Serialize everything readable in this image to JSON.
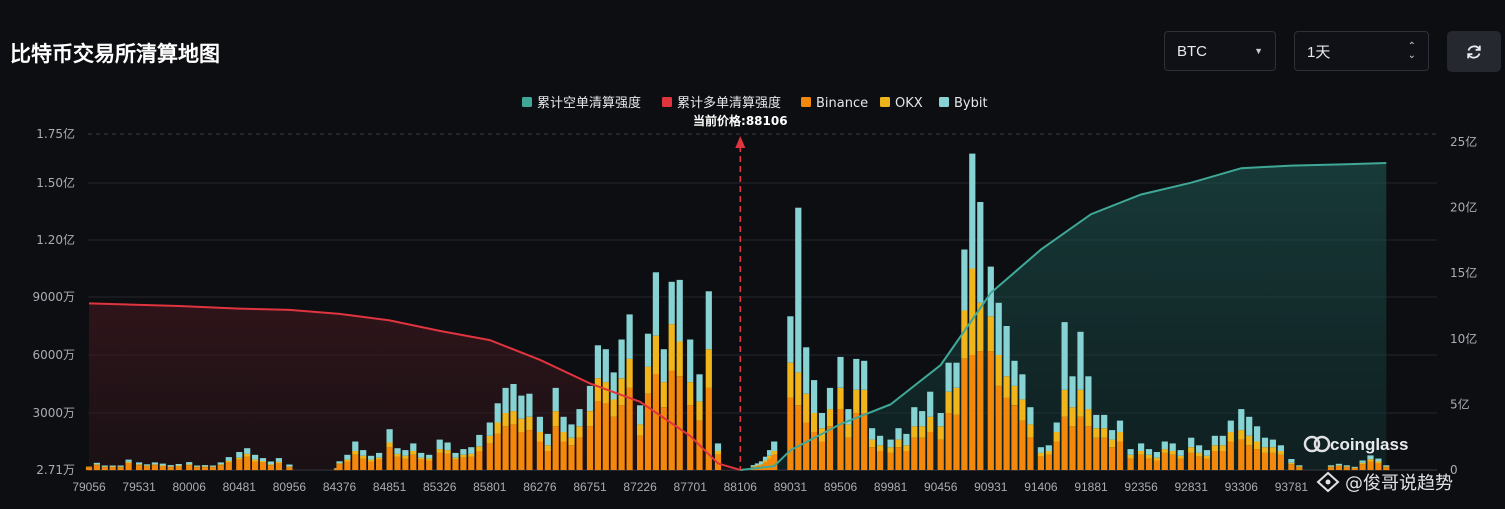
{
  "header": {
    "title": "比特币交易所清算地图",
    "coin_select": "BTC",
    "range_select": "1天",
    "refresh_icon": "refresh-icon"
  },
  "watermark": {
    "brand": "coinglass",
    "author": "@俊哥说趋势"
  },
  "colors": {
    "short_cum": "#3fa896",
    "long_cum": "#e0343f",
    "binance": "#f4880c",
    "okx": "#f0b51a",
    "bybit": "#87d3d3"
  },
  "chart_data": {
    "type": "bar",
    "title": "",
    "current_price_label": "当前价格:88106",
    "current_price": 88106,
    "legend": [
      "累计空单清算强度",
      "累计多单清算强度",
      "Binance",
      "OKX",
      "Bybit"
    ],
    "legend_placement": "top-center",
    "x_ticks": [
      "79056",
      "79531",
      "80006",
      "80481",
      "80956",
      "84376",
      "84851",
      "85326",
      "85801",
      "86276",
      "86751",
      "87226",
      "87701",
      "88106",
      "89031",
      "89506",
      "89981",
      "90456",
      "90931",
      "91406",
      "91881",
      "92356",
      "92831",
      "93306",
      "93781"
    ],
    "y_left_ticks": [
      "2.71万",
      "3000万",
      "6000万",
      "9000万",
      "1.20亿",
      "1.50亿",
      "1.75亿"
    ],
    "y_left_values": [
      27100,
      30000000,
      60000000,
      90000000,
      120000000,
      150000000,
      175000000
    ],
    "y_right_ticks": [
      "0",
      "5亿",
      "10亿",
      "15亿",
      "20亿",
      "25亿"
    ],
    "y_right_values": [
      0,
      500000000,
      1000000000,
      1500000000,
      2000000000,
      2500000000
    ],
    "grid": true,
    "unit_left": "USD",
    "bars_note": "stacked per price level, values in 万 USD (Binance, OKX, Bybit)",
    "bars": [
      {
        "x": 79056,
        "binance": 150,
        "okx": 30,
        "bybit": 0
      },
      {
        "x": 79131,
        "binance": 250,
        "okx": 50,
        "bybit": 80
      },
      {
        "x": 79206,
        "binance": 150,
        "okx": 30,
        "bybit": 60
      },
      {
        "x": 79281,
        "binance": 150,
        "okx": 40,
        "bybit": 50
      },
      {
        "x": 79356,
        "binance": 150,
        "okx": 30,
        "bybit": 60
      },
      {
        "x": 79431,
        "binance": 350,
        "okx": 80,
        "bybit": 120
      },
      {
        "x": 79531,
        "binance": 250,
        "okx": 50,
        "bybit": 100
      },
      {
        "x": 79606,
        "binance": 200,
        "okx": 40,
        "bybit": 60
      },
      {
        "x": 79681,
        "binance": 250,
        "okx": 50,
        "bybit": 100
      },
      {
        "x": 79756,
        "binance": 200,
        "okx": 40,
        "bybit": 100
      },
      {
        "x": 79831,
        "binance": 150,
        "okx": 40,
        "bybit": 70
      },
      {
        "x": 79906,
        "binance": 200,
        "okx": 40,
        "bybit": 80
      },
      {
        "x": 80006,
        "binance": 250,
        "okx": 50,
        "bybit": 120
      },
      {
        "x": 80081,
        "binance": 150,
        "okx": 30,
        "bybit": 60
      },
      {
        "x": 80156,
        "binance": 150,
        "okx": 40,
        "bybit": 70
      },
      {
        "x": 80231,
        "binance": 150,
        "okx": 30,
        "bybit": 60
      },
      {
        "x": 80306,
        "binance": 250,
        "okx": 50,
        "bybit": 100
      },
      {
        "x": 80381,
        "binance": 400,
        "okx": 80,
        "bybit": 200
      },
      {
        "x": 80481,
        "binance": 550,
        "okx": 100,
        "bybit": 300
      },
      {
        "x": 80556,
        "binance": 700,
        "okx": 150,
        "bybit": 300
      },
      {
        "x": 80631,
        "binance": 450,
        "okx": 100,
        "bybit": 250
      },
      {
        "x": 80706,
        "binance": 400,
        "okx": 80,
        "bybit": 150
      },
      {
        "x": 80781,
        "binance": 250,
        "okx": 50,
        "bybit": 150
      },
      {
        "x": 80856,
        "binance": 350,
        "okx": 80,
        "bybit": 200
      },
      {
        "x": 80956,
        "binance": 150,
        "okx": 40,
        "bybit": 100
      },
      {
        "x": 84201,
        "binance": 50,
        "okx": 10,
        "bybit": 30
      },
      {
        "x": 84276,
        "binance": 50,
        "okx": 10,
        "bybit": 30
      },
      {
        "x": 84376,
        "binance": 300,
        "okx": 60,
        "bybit": 100
      },
      {
        "x": 84451,
        "binance": 450,
        "okx": 100,
        "bybit": 250
      },
      {
        "x": 84526,
        "binance": 800,
        "okx": 200,
        "bybit": 500
      },
      {
        "x": 84601,
        "binance": 600,
        "okx": 150,
        "bybit": 300
      },
      {
        "x": 84676,
        "binance": 450,
        "okx": 100,
        "bybit": 200
      },
      {
        "x": 84751,
        "binance": 550,
        "okx": 100,
        "bybit": 250
      },
      {
        "x": 84851,
        "binance": 1200,
        "okx": 250,
        "bybit": 700
      },
      {
        "x": 84926,
        "binance": 700,
        "okx": 150,
        "bybit": 300
      },
      {
        "x": 85001,
        "binance": 600,
        "okx": 150,
        "bybit": 300
      },
      {
        "x": 85076,
        "binance": 800,
        "okx": 200,
        "bybit": 400
      },
      {
        "x": 85151,
        "binance": 550,
        "okx": 100,
        "bybit": 250
      },
      {
        "x": 85226,
        "binance": 500,
        "okx": 100,
        "bybit": 200
      },
      {
        "x": 85326,
        "binance": 900,
        "okx": 200,
        "bybit": 500
      },
      {
        "x": 85401,
        "binance": 850,
        "okx": 200,
        "bybit": 400
      },
      {
        "x": 85476,
        "binance": 550,
        "okx": 100,
        "bybit": 250
      },
      {
        "x": 85551,
        "binance": 650,
        "okx": 150,
        "bybit": 300
      },
      {
        "x": 85626,
        "binance": 700,
        "okx": 150,
        "bybit": 350
      },
      {
        "x": 85701,
        "binance": 1000,
        "okx": 250,
        "bybit": 600
      },
      {
        "x": 85801,
        "binance": 1400,
        "okx": 400,
        "bybit": 700
      },
      {
        "x": 85876,
        "binance": 1900,
        "okx": 600,
        "bybit": 1000
      },
      {
        "x": 85951,
        "binance": 2300,
        "okx": 700,
        "bybit": 1300
      },
      {
        "x": 86026,
        "binance": 2400,
        "okx": 700,
        "bybit": 1400
      },
      {
        "x": 86101,
        "binance": 2000,
        "okx": 700,
        "bybit": 1200
      },
      {
        "x": 86176,
        "binance": 2100,
        "okx": 700,
        "bybit": 1200
      },
      {
        "x": 86276,
        "binance": 1500,
        "okx": 500,
        "bybit": 800
      },
      {
        "x": 86351,
        "binance": 1000,
        "okx": 300,
        "bybit": 600
      },
      {
        "x": 86426,
        "binance": 2300,
        "okx": 800,
        "bybit": 1200
      },
      {
        "x": 86501,
        "binance": 1500,
        "okx": 500,
        "bybit": 800
      },
      {
        "x": 86576,
        "binance": 1300,
        "okx": 400,
        "bybit": 700
      },
      {
        "x": 86651,
        "binance": 1700,
        "okx": 600,
        "bybit": 900
      },
      {
        "x": 86751,
        "binance": 2300,
        "okx": 800,
        "bybit": 1300
      },
      {
        "x": 86826,
        "binance": 3600,
        "okx": 1200,
        "bybit": 1700
      },
      {
        "x": 86901,
        "binance": 3500,
        "okx": 1100,
        "bybit": 1700
      },
      {
        "x": 86976,
        "binance": 2800,
        "okx": 900,
        "bybit": 1400
      },
      {
        "x": 87051,
        "binance": 3400,
        "okx": 1400,
        "bybit": 2000
      },
      {
        "x": 87126,
        "binance": 4300,
        "okx": 1500,
        "bybit": 2300
      },
      {
        "x": 87226,
        "binance": 1800,
        "okx": 600,
        "bybit": 1000
      },
      {
        "x": 87301,
        "binance": 4000,
        "okx": 1400,
        "bybit": 1700
      },
      {
        "x": 87376,
        "binance": 5000,
        "okx": 2000,
        "bybit": 3300
      },
      {
        "x": 87451,
        "binance": 3300,
        "okx": 1300,
        "bybit": 1700
      },
      {
        "x": 87526,
        "binance": 5200,
        "okx": 2400,
        "bybit": 2200
      },
      {
        "x": 87601,
        "binance": 4900,
        "okx": 1800,
        "bybit": 3200
      },
      {
        "x": 87701,
        "binance": 3400,
        "okx": 1200,
        "bybit": 2200
      },
      {
        "x": 87776,
        "binance": 2600,
        "okx": 1000,
        "bybit": 1400
      },
      {
        "x": 87851,
        "binance": 4300,
        "okx": 2000,
        "bybit": 3000
      },
      {
        "x": 87926,
        "binance": 800,
        "okx": 200,
        "bybit": 400
      },
      {
        "x": 88356,
        "binance": 150,
        "okx": 30,
        "bybit": 80
      },
      {
        "x": 88431,
        "binance": 200,
        "okx": 50,
        "bybit": 100
      },
      {
        "x": 88506,
        "binance": 250,
        "okx": 60,
        "bybit": 150
      },
      {
        "x": 88581,
        "binance": 400,
        "okx": 100,
        "bybit": 200
      },
      {
        "x": 88656,
        "binance": 600,
        "okx": 150,
        "bybit": 300
      },
      {
        "x": 88731,
        "binance": 800,
        "okx": 200,
        "bybit": 500
      },
      {
        "x": 89031,
        "binance": 3800,
        "okx": 1800,
        "bybit": 2400
      },
      {
        "x": 89106,
        "binance": 3400,
        "okx": 1700,
        "bybit": 8600
      },
      {
        "x": 89181,
        "binance": 2500,
        "okx": 1500,
        "bybit": 2400
      },
      {
        "x": 89256,
        "binance": 2000,
        "okx": 1000,
        "bybit": 1700
      },
      {
        "x": 89331,
        "binance": 1500,
        "okx": 700,
        "bybit": 800
      },
      {
        "x": 89406,
        "binance": 2300,
        "okx": 900,
        "bybit": 1100
      },
      {
        "x": 89506,
        "binance": 3200,
        "okx": 1100,
        "bybit": 1600
      },
      {
        "x": 89581,
        "binance": 1700,
        "okx": 700,
        "bybit": 800
      },
      {
        "x": 89656,
        "binance": 3000,
        "okx": 1200,
        "bybit": 1600
      },
      {
        "x": 89731,
        "binance": 3000,
        "okx": 1200,
        "bybit": 1500
      },
      {
        "x": 89806,
        "binance": 1200,
        "okx": 400,
        "bybit": 600
      },
      {
        "x": 89881,
        "binance": 1000,
        "okx": 300,
        "bybit": 500
      },
      {
        "x": 89981,
        "binance": 900,
        "okx": 300,
        "bybit": 400
      },
      {
        "x": 90056,
        "binance": 1200,
        "okx": 400,
        "bybit": 600
      },
      {
        "x": 90131,
        "binance": 1000,
        "okx": 300,
        "bybit": 600
      },
      {
        "x": 90206,
        "binance": 1700,
        "okx": 600,
        "bybit": 1000
      },
      {
        "x": 90281,
        "binance": 1700,
        "okx": 600,
        "bybit": 800
      },
      {
        "x": 90356,
        "binance": 2000,
        "okx": 800,
        "bybit": 1300
      },
      {
        "x": 90456,
        "binance": 1600,
        "okx": 700,
        "bybit": 700
      },
      {
        "x": 90531,
        "binance": 3000,
        "okx": 1100,
        "bybit": 1500
      },
      {
        "x": 90606,
        "binance": 2900,
        "okx": 1400,
        "bybit": 1300
      },
      {
        "x": 90681,
        "binance": 5800,
        "okx": 2500,
        "bybit": 3200
      },
      {
        "x": 90756,
        "binance": 6000,
        "okx": 4500,
        "bybit": 6000
      },
      {
        "x": 90831,
        "binance": 6200,
        "okx": 2500,
        "bybit": 5300
      },
      {
        "x": 90931,
        "binance": 6200,
        "okx": 1800,
        "bybit": 2600
      },
      {
        "x": 91006,
        "binance": 4400,
        "okx": 1600,
        "bybit": 2700
      },
      {
        "x": 91081,
        "binance": 3800,
        "okx": 1100,
        "bybit": 2600
      },
      {
        "x": 91156,
        "binance": 3400,
        "okx": 1000,
        "bybit": 1300
      },
      {
        "x": 91231,
        "binance": 2600,
        "okx": 1100,
        "bybit": 1300
      },
      {
        "x": 91306,
        "binance": 1700,
        "okx": 700,
        "bybit": 900
      },
      {
        "x": 91406,
        "binance": 700,
        "okx": 200,
        "bybit": 300
      },
      {
        "x": 91481,
        "binance": 800,
        "okx": 200,
        "bybit": 300
      },
      {
        "x": 91556,
        "binance": 1500,
        "okx": 500,
        "bybit": 500
      },
      {
        "x": 91631,
        "binance": 2800,
        "okx": 1400,
        "bybit": 3500
      },
      {
        "x": 91706,
        "binance": 2300,
        "okx": 1000,
        "bybit": 1600
      },
      {
        "x": 91781,
        "binance": 2800,
        "okx": 1400,
        "bybit": 3000
      },
      {
        "x": 91856,
        "binance": 2300,
        "okx": 900,
        "bybit": 1700
      },
      {
        "x": 91931,
        "binance": 1700,
        "okx": 500,
        "bybit": 700
      },
      {
        "x": 92006,
        "binance": 1700,
        "okx": 500,
        "bybit": 700
      },
      {
        "x": 92081,
        "binance": 1200,
        "okx": 400,
        "bybit": 500
      },
      {
        "x": 92156,
        "binance": 1500,
        "okx": 500,
        "bybit": 600
      },
      {
        "x": 92256,
        "binance": 600,
        "okx": 200,
        "bybit": 300
      },
      {
        "x": 92356,
        "binance": 800,
        "okx": 200,
        "bybit": 400
      },
      {
        "x": 92431,
        "binance": 600,
        "okx": 200,
        "bybit": 300
      },
      {
        "x": 92506,
        "binance": 500,
        "okx": 150,
        "bybit": 300
      },
      {
        "x": 92581,
        "binance": 900,
        "okx": 200,
        "bybit": 400
      },
      {
        "x": 92656,
        "binance": 800,
        "okx": 200,
        "bybit": 400
      },
      {
        "x": 92731,
        "binance": 600,
        "okx": 150,
        "bybit": 300
      },
      {
        "x": 92831,
        "binance": 900,
        "okx": 300,
        "bybit": 500
      },
      {
        "x": 92906,
        "binance": 700,
        "okx": 200,
        "bybit": 400
      },
      {
        "x": 92981,
        "binance": 600,
        "okx": 150,
        "bybit": 300
      },
      {
        "x": 93056,
        "binance": 1000,
        "okx": 300,
        "bybit": 500
      },
      {
        "x": 93131,
        "binance": 1000,
        "okx": 300,
        "bybit": 500
      },
      {
        "x": 93206,
        "binance": 1500,
        "okx": 500,
        "bybit": 600
      },
      {
        "x": 93306,
        "binance": 1600,
        "okx": 500,
        "bybit": 1100
      },
      {
        "x": 93381,
        "binance": 1300,
        "okx": 500,
        "bybit": 1000
      },
      {
        "x": 93456,
        "binance": 1100,
        "okx": 400,
        "bybit": 800
      },
      {
        "x": 93531,
        "binance": 900,
        "okx": 300,
        "bybit": 500
      },
      {
        "x": 93606,
        "binance": 900,
        "okx": 300,
        "bybit": 400
      },
      {
        "x": 93681,
        "binance": 800,
        "okx": 200,
        "bybit": 300
      },
      {
        "x": 93781,
        "binance": 300,
        "okx": 80,
        "bybit": 200
      },
      {
        "x": 93856,
        "binance": 150,
        "okx": 40,
        "bybit": 60
      },
      {
        "x": 94156,
        "binance": 150,
        "okx": 40,
        "bybit": 60
      },
      {
        "x": 94231,
        "binance": 200,
        "okx": 50,
        "bybit": 80
      },
      {
        "x": 94306,
        "binance": 150,
        "okx": 40,
        "bybit": 60
      },
      {
        "x": 94381,
        "binance": 100,
        "okx": 30,
        "bybit": 40
      },
      {
        "x": 94456,
        "binance": 300,
        "okx": 80,
        "bybit": 120
      },
      {
        "x": 94531,
        "binance": 450,
        "okx": 120,
        "bybit": 200
      },
      {
        "x": 94606,
        "binance": 350,
        "okx": 100,
        "bybit": 150
      },
      {
        "x": 94681,
        "binance": 150,
        "okx": 40,
        "bybit": 60
      }
    ],
    "long_cum_note": "累计多单清算强度, 亿 USD (right axis), from low price up to current price",
    "long_cum": [
      {
        "x": 79056,
        "v": 12.7
      },
      {
        "x": 79906,
        "v": 12.5
      },
      {
        "x": 80481,
        "v": 12.3
      },
      {
        "x": 80956,
        "v": 12.2
      },
      {
        "x": 84376,
        "v": 11.9
      },
      {
        "x": 84851,
        "v": 11.4
      },
      {
        "x": 85326,
        "v": 10.6
      },
      {
        "x": 85801,
        "v": 9.9
      },
      {
        "x": 86276,
        "v": 8.4
      },
      {
        "x": 86751,
        "v": 6.6
      },
      {
        "x": 87226,
        "v": 5.2
      },
      {
        "x": 87701,
        "v": 2.6
      },
      {
        "x": 87926,
        "v": 0.5
      },
      {
        "x": 88106,
        "v": 0
      }
    ],
    "short_cum_note": "累计空单清算强度, 亿 USD (right axis), from current price upward",
    "short_cum": [
      {
        "x": 88106,
        "v": 0
      },
      {
        "x": 88731,
        "v": 0.3
      },
      {
        "x": 89031,
        "v": 1.5
      },
      {
        "x": 89506,
        "v": 3.5
      },
      {
        "x": 89981,
        "v": 5.0
      },
      {
        "x": 90456,
        "v": 8.0
      },
      {
        "x": 90931,
        "v": 13.5
      },
      {
        "x": 91406,
        "v": 16.8
      },
      {
        "x": 91881,
        "v": 19.5
      },
      {
        "x": 92356,
        "v": 21.0
      },
      {
        "x": 92831,
        "v": 21.9
      },
      {
        "x": 93306,
        "v": 23.0
      },
      {
        "x": 93781,
        "v": 23.2
      },
      {
        "x": 94306,
        "v": 23.3
      },
      {
        "x": 94681,
        "v": 23.4
      }
    ]
  }
}
